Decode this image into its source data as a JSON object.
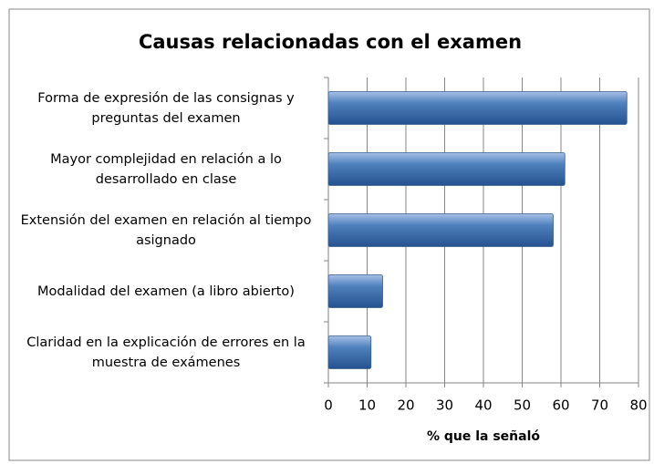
{
  "chart_data": {
    "type": "bar",
    "orientation": "horizontal",
    "title": "Causas relacionadas con el examen",
    "x_label": "% que la señaló",
    "categories": [
      "Forma de expresión de las consignas y preguntas del examen",
      "Mayor complejidad en relación a lo desarrollado en clase",
      "Extensión del examen en relación al tiempo asignado",
      "Modalidad del examen (a libro abierto)",
      "Claridad en la explicación de errores en la muestra de exámenes"
    ],
    "values": [
      77,
      61,
      58,
      14,
      11
    ],
    "color": "#4f81bd",
    "xlim": [
      0,
      80
    ],
    "xticks": [
      0,
      10,
      20,
      30,
      40,
      50,
      60,
      70,
      80
    ],
    "grid": true
  }
}
